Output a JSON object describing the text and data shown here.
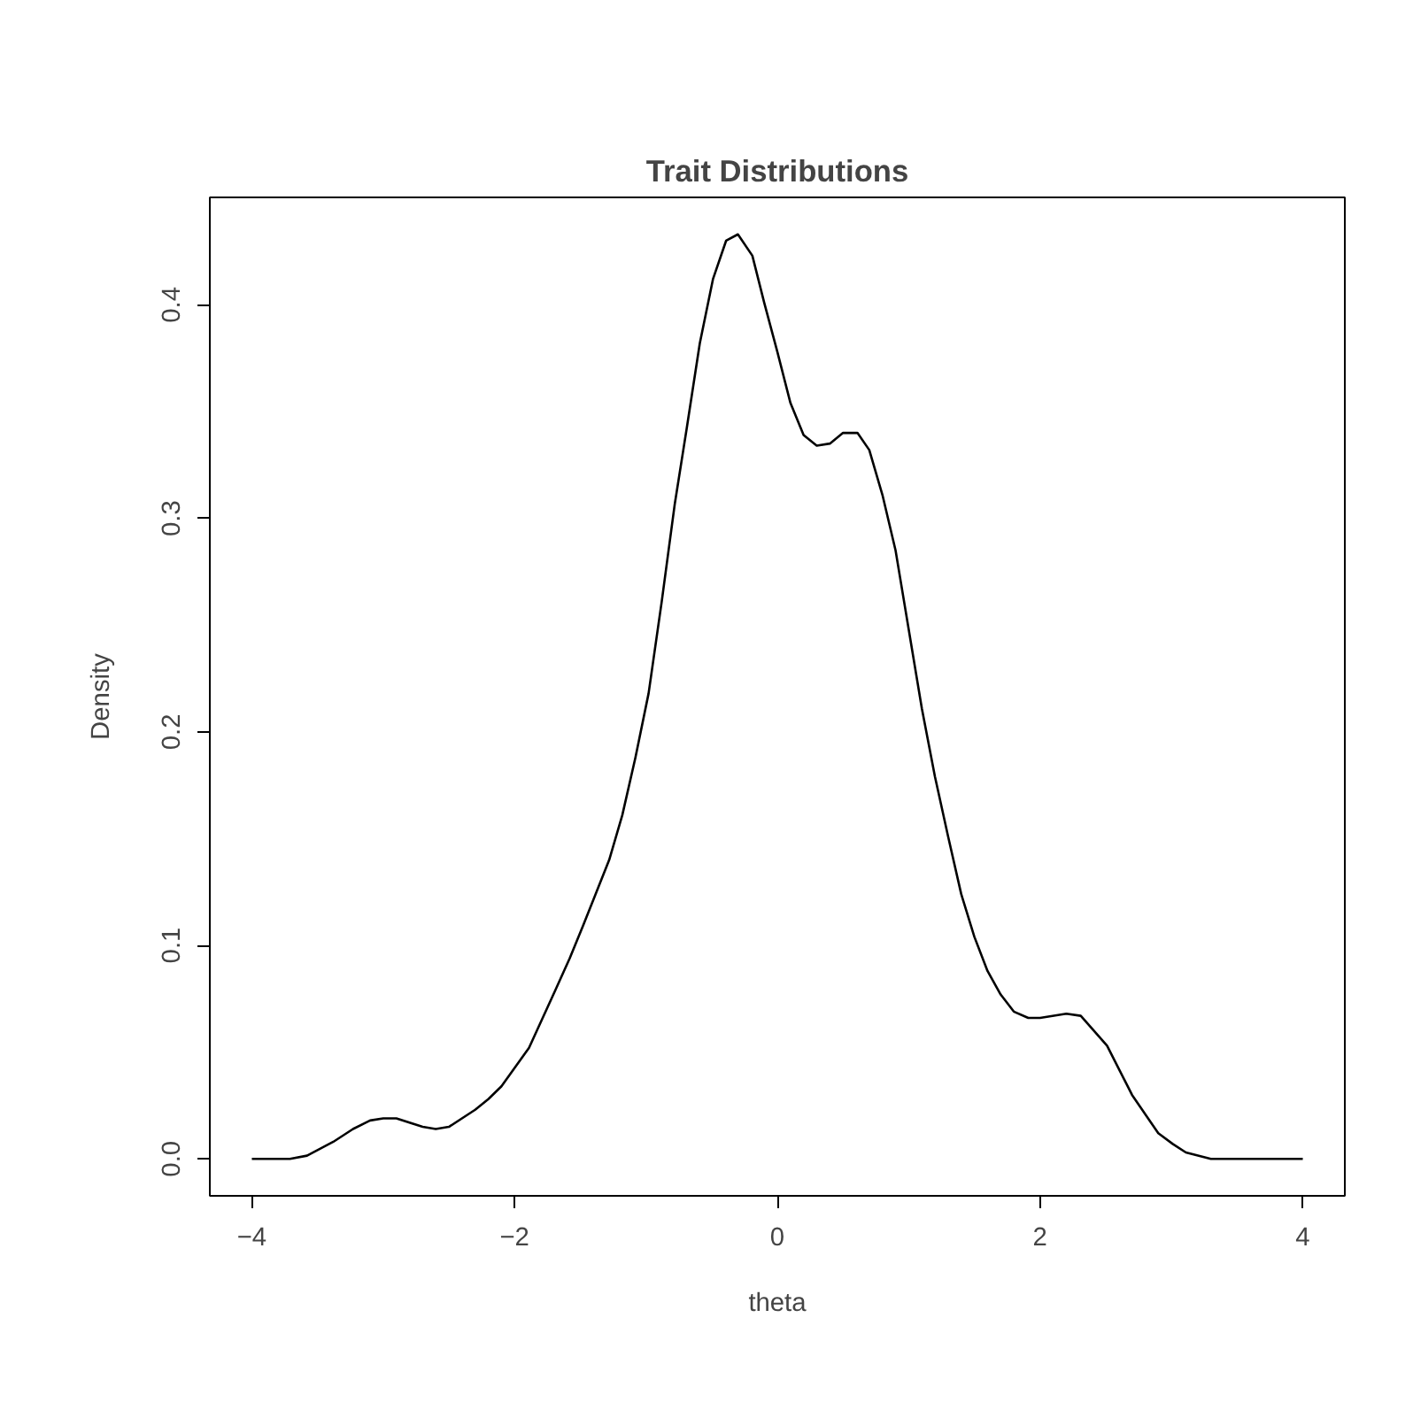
{
  "chart_data": {
    "type": "line",
    "title": "Trait Distributions",
    "xlabel": "theta",
    "ylabel": "Density",
    "color": "#000000",
    "xlim": [
      -4.32,
      4.32
    ],
    "ylim": [
      -0.0173,
      0.4503
    ],
    "xticks": [
      -4,
      -2,
      0,
      2,
      4
    ],
    "yticks": [
      {
        "value": 0,
        "label": "0.0"
      },
      0.1,
      0.2,
      0.3,
      0.4
    ],
    "x": [
      -4,
      -3.71,
      -3.58,
      -3.38,
      -3.23,
      -3.1,
      -3.0,
      -2.9,
      -2.7,
      -2.6,
      -2.5,
      -2.3,
      -2.2,
      -2.1,
      -1.89,
      -1.69,
      -1.58,
      -1.48,
      -1.28,
      -1.18,
      -1.08,
      -0.98,
      -0.88,
      -0.78,
      -0.69,
      -0.59,
      -0.49,
      -0.39,
      -0.3,
      -0.19,
      -0.1,
      0.0,
      0.1,
      0.2,
      0.3,
      0.4,
      0.5,
      0.61,
      0.7,
      0.8,
      0.9,
      1.0,
      1.1,
      1.2,
      1.3,
      1.4,
      1.5,
      1.6,
      1.7,
      1.8,
      1.91,
      2.0,
      2.2,
      2.31,
      2.51,
      2.7,
      2.9,
      3.01,
      3.11,
      3.3,
      4.0
    ],
    "values": [
      0,
      0,
      0.0015,
      0.008,
      0.014,
      0.018,
      0.019,
      0.019,
      0.015,
      0.014,
      0.015,
      0.023,
      0.028,
      0.034,
      0.052,
      0.079,
      0.094,
      0.109,
      0.14,
      0.161,
      0.188,
      0.218,
      0.261,
      0.307,
      0.342,
      0.382,
      0.412,
      0.43,
      0.433,
      0.423,
      0.401,
      0.378,
      0.354,
      0.339,
      0.334,
      0.335,
      0.34,
      0.34,
      0.332,
      0.311,
      0.285,
      0.248,
      0.211,
      0.179,
      0.151,
      0.124,
      0.104,
      0.088,
      0.077,
      0.069,
      0.066,
      0.066,
      0.068,
      0.067,
      0.053,
      0.03,
      0.012,
      0.007,
      0.003,
      0,
      0
    ]
  }
}
